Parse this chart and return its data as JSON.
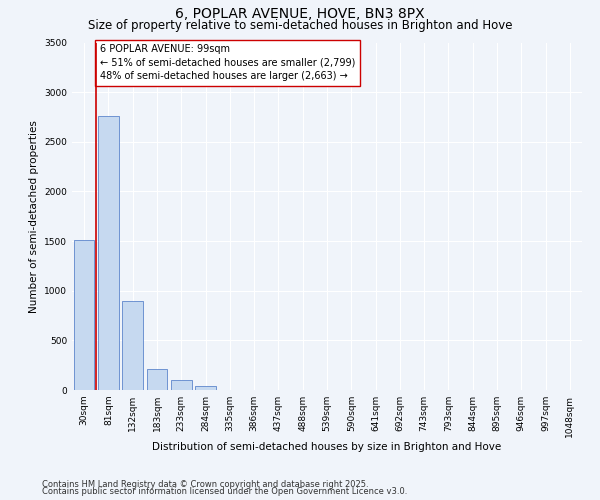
{
  "title1": "6, POPLAR AVENUE, HOVE, BN3 8PX",
  "title2": "Size of property relative to semi-detached houses in Brighton and Hove",
  "xlabel": "Distribution of semi-detached houses by size in Brighton and Hove",
  "ylabel": "Number of semi-detached properties",
  "categories": [
    "30sqm",
    "81sqm",
    "132sqm",
    "183sqm",
    "233sqm",
    "284sqm",
    "335sqm",
    "386sqm",
    "437sqm",
    "488sqm",
    "539sqm",
    "590sqm",
    "641sqm",
    "692sqm",
    "743sqm",
    "793sqm",
    "844sqm",
    "895sqm",
    "946sqm",
    "997sqm",
    "1048sqm"
  ],
  "values": [
    1510,
    2760,
    900,
    210,
    100,
    40,
    0,
    0,
    0,
    0,
    0,
    0,
    0,
    0,
    0,
    0,
    0,
    0,
    0,
    0,
    0
  ],
  "bar_color": "#c6d9f0",
  "bar_edge_color": "#4472c4",
  "vline_color": "#cc0000",
  "vline_x": 1.5,
  "annotation_line1": "6 POPLAR AVENUE: 99sqm",
  "annotation_line2": "← 51% of semi-detached houses are smaller (2,799)",
  "annotation_line3": "48% of semi-detached houses are larger (2,663) →",
  "annotation_box_color": "#ffffff",
  "annotation_box_edge": "#cc0000",
  "ylim": [
    0,
    3500
  ],
  "yticks": [
    0,
    500,
    1000,
    1500,
    2000,
    2500,
    3000,
    3500
  ],
  "footnote1": "Contains HM Land Registry data © Crown copyright and database right 2025.",
  "footnote2": "Contains public sector information licensed under the Open Government Licence v3.0.",
  "bg_color": "#f0f4fa",
  "plot_bg_color": "#f0f4fa",
  "title1_fontsize": 10,
  "title2_fontsize": 8.5,
  "annotation_fontsize": 7,
  "axis_label_fontsize": 7.5,
  "tick_fontsize": 6.5,
  "footnote_fontsize": 6
}
